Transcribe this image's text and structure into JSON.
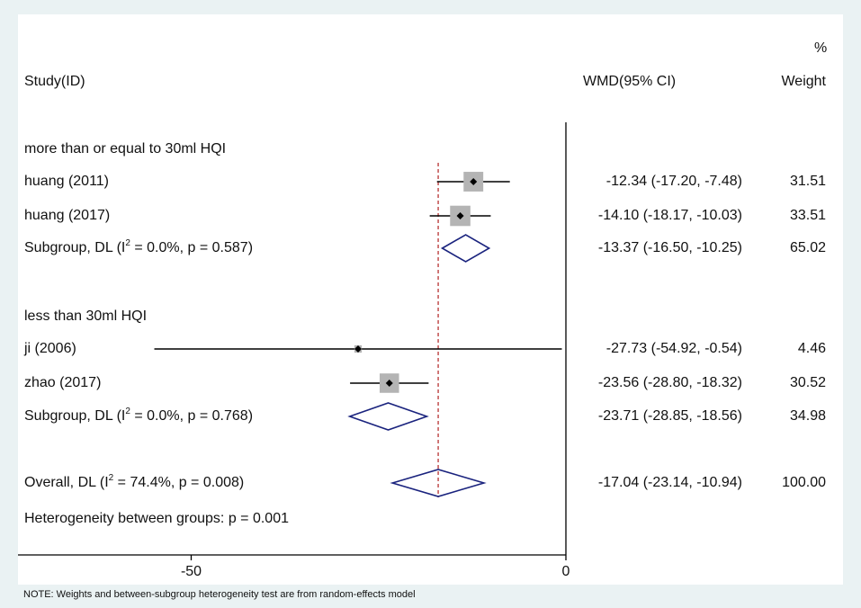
{
  "header": {
    "study_col": "Study(ID)",
    "effect_col": "WMD(95% CI)",
    "weight_pct": "%",
    "weight_col": "Weight"
  },
  "footer_note": "NOTE: Weights and between-subgroup heterogeneity test are from random-effects model",
  "heterogeneity_text": "Heterogeneity between groups: p = 0.001",
  "chart_data": {
    "type": "forest",
    "effect_measure": "WMD",
    "xlim": [
      -73.5,
      0
    ],
    "x_ticks": [
      -50,
      0
    ],
    "null_line": 0,
    "overall_line": -17.04,
    "rows": [
      {
        "kind": "header",
        "label": "more than or equal to 30ml HQI"
      },
      {
        "kind": "study",
        "label": "huang (2011)",
        "est": -12.34,
        "lo": -17.2,
        "hi": -7.48,
        "weight": 31.51,
        "ci_text": "-12.34 (-17.20, -7.48)",
        "weight_text": "31.51"
      },
      {
        "kind": "study",
        "label": "huang (2017)",
        "est": -14.1,
        "lo": -18.17,
        "hi": -10.03,
        "weight": 33.51,
        "ci_text": "-14.10 (-18.17, -10.03)",
        "weight_text": "33.51"
      },
      {
        "kind": "subtotal",
        "label_pre": "Subgroup, DL (I",
        "sup": "2",
        "label_post": " = 0.0%, p = 0.587)",
        "est": -13.37,
        "lo": -16.5,
        "hi": -10.25,
        "ci_text": "-13.37 (-16.50, -10.25)",
        "weight_text": "65.02"
      },
      {
        "kind": "header",
        "label": "less than 30ml HQI"
      },
      {
        "kind": "study",
        "label": "ji (2006)",
        "est": -27.73,
        "lo": -54.92,
        "hi": -0.54,
        "weight": 4.46,
        "ci_text": "-27.73 (-54.92, -0.54)",
        "weight_text": "4.46"
      },
      {
        "kind": "study",
        "label": "zhao (2017)",
        "est": -23.56,
        "lo": -28.8,
        "hi": -18.32,
        "weight": 30.52,
        "ci_text": "-23.56 (-28.80, -18.32)",
        "weight_text": "30.52"
      },
      {
        "kind": "subtotal",
        "label_pre": "Subgroup, DL (I",
        "sup": "2",
        "label_post": " = 0.0%, p = 0.768)",
        "est": -23.71,
        "lo": -28.85,
        "hi": -18.56,
        "ci_text": "-23.71 (-28.85, -18.56)",
        "weight_text": "34.98"
      },
      {
        "kind": "overall",
        "label_pre": "Overall, DL (I",
        "sup": "2",
        "label_post": " = 74.4%, p = 0.008)",
        "est": -17.04,
        "lo": -23.14,
        "hi": -10.94,
        "ci_text": "-17.04 (-23.14, -10.94)",
        "weight_text": "100.00"
      }
    ],
    "colors": {
      "ci_line": "#000000",
      "weight_box": "#b4b4b4",
      "point": "#000000",
      "diamond": "#1a237e",
      "overall_line": "#b22222",
      "axis": "#000000"
    }
  }
}
